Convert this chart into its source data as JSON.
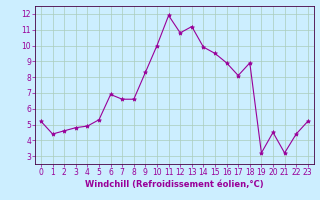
{
  "x": [
    0,
    1,
    2,
    3,
    4,
    5,
    6,
    7,
    8,
    9,
    10,
    11,
    12,
    13,
    14,
    15,
    16,
    17,
    18,
    19,
    20,
    21,
    22,
    23
  ],
  "y": [
    5.2,
    4.4,
    4.6,
    4.8,
    4.9,
    5.3,
    6.9,
    6.6,
    6.6,
    8.3,
    10.0,
    11.9,
    10.8,
    11.2,
    9.9,
    9.5,
    8.9,
    8.1,
    8.9,
    3.2,
    4.5,
    3.2,
    4.4,
    5.2
  ],
  "line_color": "#990099",
  "marker": "*",
  "marker_size": 3,
  "bg_color": "#cceeff",
  "grid_color": "#aaccbb",
  "xlim": [
    -0.5,
    23.5
  ],
  "ylim": [
    2.5,
    12.5
  ],
  "yticks": [
    3,
    4,
    5,
    6,
    7,
    8,
    9,
    10,
    11,
    12
  ],
  "xticks": [
    0,
    1,
    2,
    3,
    4,
    5,
    6,
    7,
    8,
    9,
    10,
    11,
    12,
    13,
    14,
    15,
    16,
    17,
    18,
    19,
    20,
    21,
    22,
    23
  ],
  "tick_fontsize": 5.5,
  "xlabel": "Windchill (Refroidissement éolien,°C)",
  "xlabel_fontsize": 6,
  "spine_color": "#440044",
  "line_width": 0.8
}
